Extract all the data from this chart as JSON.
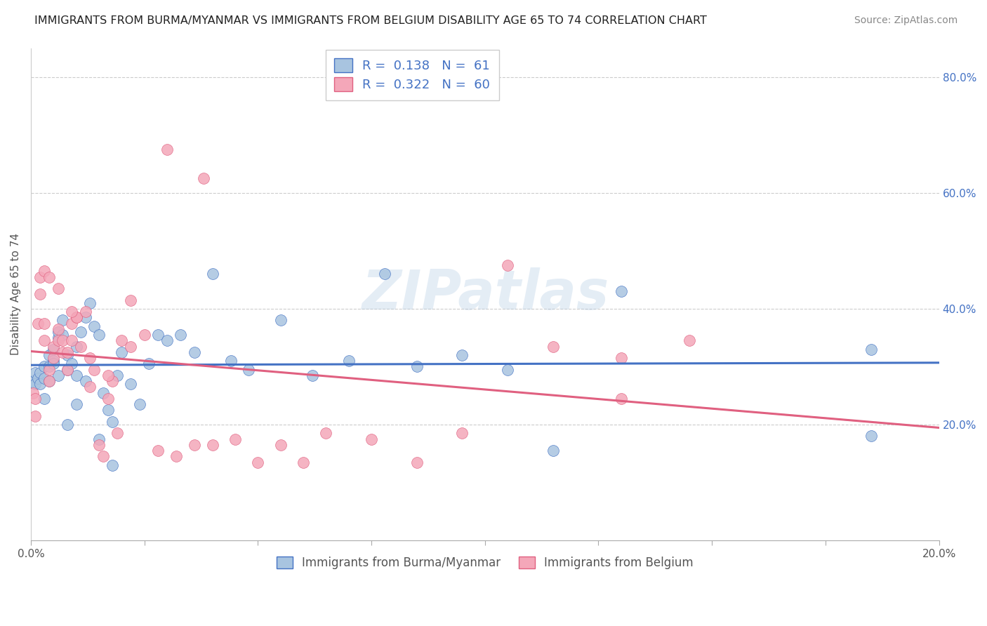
{
  "title": "IMMIGRANTS FROM BURMA/MYANMAR VS IMMIGRANTS FROM BELGIUM DISABILITY AGE 65 TO 74 CORRELATION CHART",
  "source": "Source: ZipAtlas.com",
  "ylabel": "Disability Age 65 to 74",
  "ylabel_right_ticks": [
    "20.0%",
    "40.0%",
    "60.0%",
    "80.0%"
  ],
  "ylabel_right_vals": [
    0.2,
    0.4,
    0.6,
    0.8
  ],
  "legend_label_1": "Immigrants from Burma/Myanmar",
  "legend_label_2": "Immigrants from Belgium",
  "R1": "0.138",
  "N1": "61",
  "R2": "0.322",
  "N2": "60",
  "color_burma": "#a8c4e0",
  "color_belgium": "#f4a7b9",
  "color_burma_line": "#4472c4",
  "color_belgium_line": "#e06080",
  "watermark": "ZIPatlas",
  "xlim": [
    0.0,
    0.2
  ],
  "ylim": [
    0.0,
    0.85
  ],
  "xticks": [
    0.0,
    0.025,
    0.05,
    0.075,
    0.1,
    0.125,
    0.15,
    0.175,
    0.2
  ],
  "burma_x": [
    0.0005,
    0.001,
    0.001,
    0.0015,
    0.002,
    0.002,
    0.003,
    0.003,
    0.004,
    0.004,
    0.005,
    0.005,
    0.006,
    0.006,
    0.007,
    0.007,
    0.008,
    0.008,
    0.009,
    0.01,
    0.01,
    0.011,
    0.012,
    0.013,
    0.014,
    0.015,
    0.016,
    0.017,
    0.018,
    0.019,
    0.02,
    0.022,
    0.024,
    0.026,
    0.028,
    0.03,
    0.033,
    0.036,
    0.04,
    0.044,
    0.048,
    0.055,
    0.062,
    0.07,
    0.078,
    0.085,
    0.095,
    0.105,
    0.115,
    0.13,
    0.003,
    0.004,
    0.005,
    0.006,
    0.008,
    0.01,
    0.012,
    0.015,
    0.018,
    0.185,
    0.185
  ],
  "burma_y": [
    0.275,
    0.27,
    0.29,
    0.28,
    0.27,
    0.29,
    0.3,
    0.28,
    0.32,
    0.3,
    0.31,
    0.33,
    0.35,
    0.36,
    0.38,
    0.355,
    0.32,
    0.295,
    0.305,
    0.285,
    0.335,
    0.36,
    0.385,
    0.41,
    0.37,
    0.355,
    0.255,
    0.225,
    0.205,
    0.285,
    0.325,
    0.27,
    0.235,
    0.305,
    0.355,
    0.345,
    0.355,
    0.325,
    0.46,
    0.31,
    0.295,
    0.38,
    0.285,
    0.31,
    0.46,
    0.3,
    0.32,
    0.295,
    0.155,
    0.43,
    0.245,
    0.275,
    0.305,
    0.285,
    0.2,
    0.235,
    0.275,
    0.175,
    0.13,
    0.18,
    0.33
  ],
  "belgium_x": [
    0.0005,
    0.001,
    0.001,
    0.0015,
    0.002,
    0.002,
    0.003,
    0.003,
    0.004,
    0.004,
    0.005,
    0.005,
    0.006,
    0.006,
    0.007,
    0.007,
    0.008,
    0.008,
    0.009,
    0.009,
    0.01,
    0.01,
    0.011,
    0.012,
    0.013,
    0.014,
    0.015,
    0.016,
    0.017,
    0.018,
    0.019,
    0.02,
    0.022,
    0.025,
    0.028,
    0.032,
    0.036,
    0.04,
    0.045,
    0.05,
    0.055,
    0.06,
    0.065,
    0.075,
    0.085,
    0.095,
    0.105,
    0.115,
    0.13,
    0.145,
    0.003,
    0.004,
    0.006,
    0.009,
    0.013,
    0.017,
    0.022,
    0.03,
    0.038,
    0.13
  ],
  "belgium_y": [
    0.255,
    0.245,
    0.215,
    0.375,
    0.425,
    0.455,
    0.375,
    0.345,
    0.295,
    0.275,
    0.315,
    0.335,
    0.365,
    0.345,
    0.325,
    0.345,
    0.325,
    0.295,
    0.375,
    0.345,
    0.385,
    0.385,
    0.335,
    0.395,
    0.315,
    0.295,
    0.165,
    0.145,
    0.245,
    0.275,
    0.185,
    0.345,
    0.335,
    0.355,
    0.155,
    0.145,
    0.165,
    0.165,
    0.175,
    0.135,
    0.165,
    0.135,
    0.185,
    0.175,
    0.135,
    0.185,
    0.475,
    0.335,
    0.315,
    0.345,
    0.465,
    0.455,
    0.435,
    0.395,
    0.265,
    0.285,
    0.415,
    0.675,
    0.625,
    0.245
  ]
}
